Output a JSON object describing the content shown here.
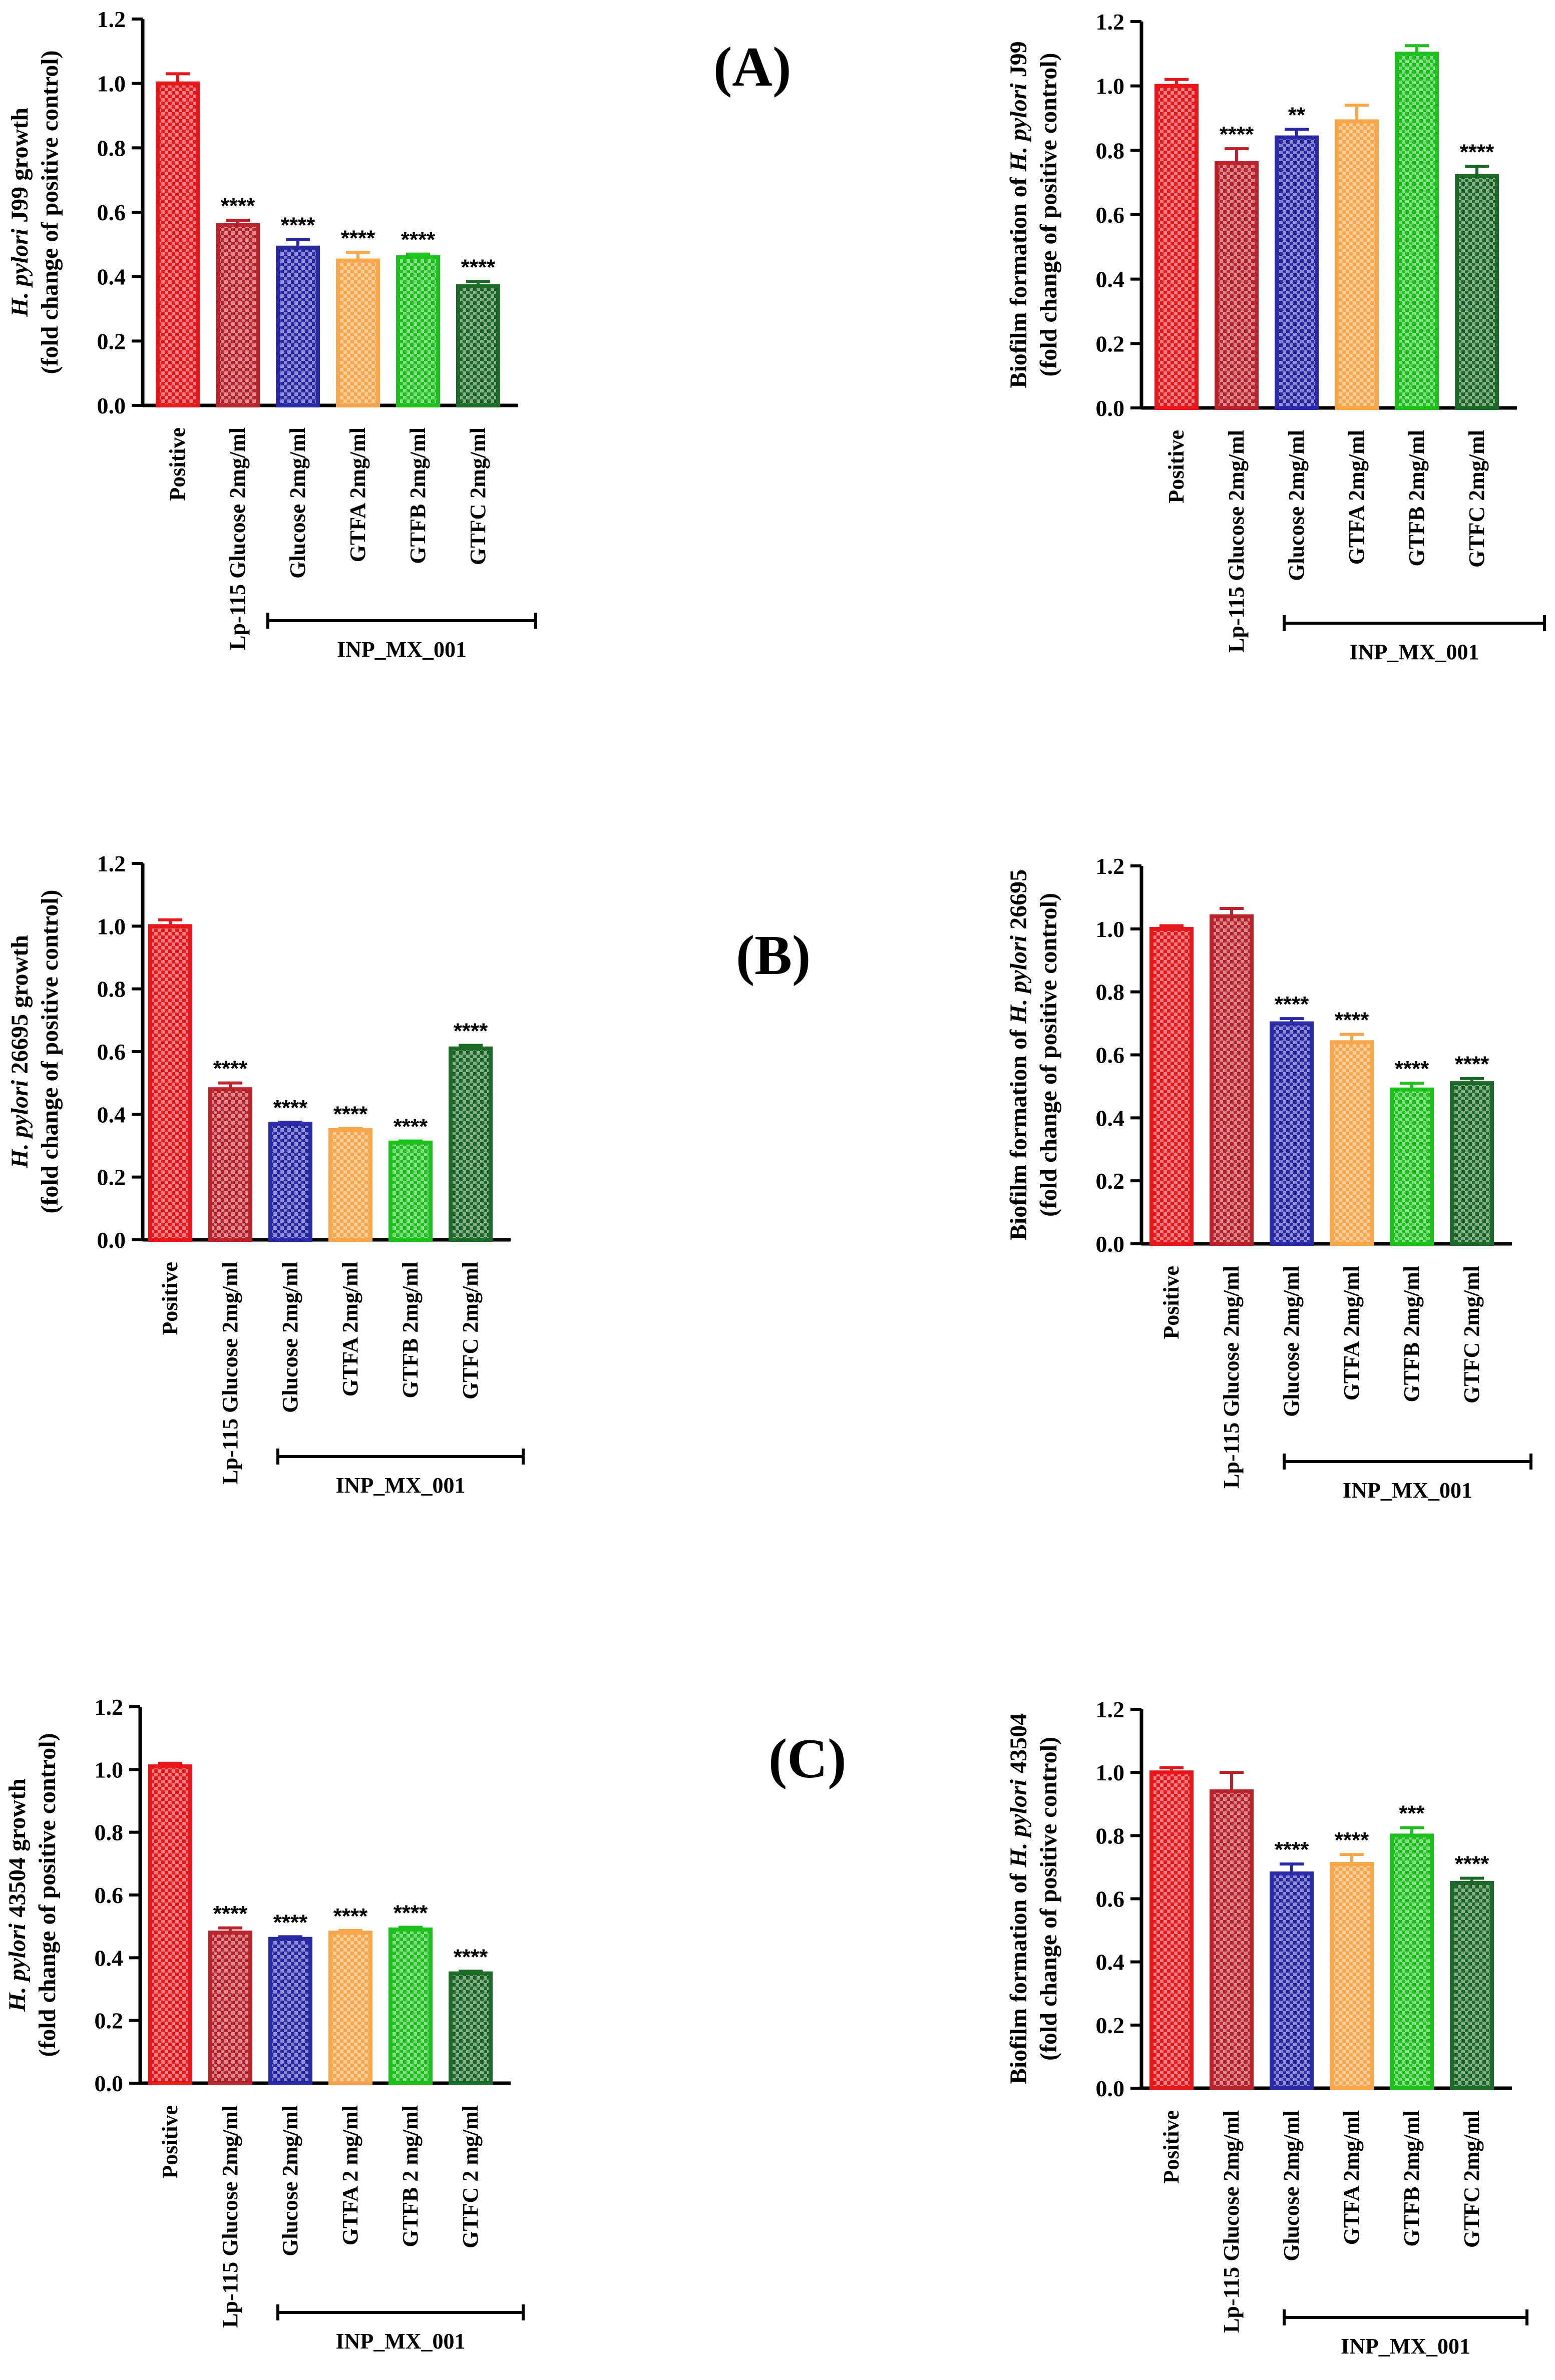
{
  "panel_labels": [
    "(A)",
    "(B)",
    "(C)"
  ],
  "colors": {
    "positive": "#e8171c",
    "lp115": "#b8232c",
    "glucose": "#2a2aa6",
    "gtfa": "#f8a64a",
    "gtfb": "#1ec01e",
    "gtfc": "#1d6a28",
    "axis": "#000000"
  },
  "chart_data": [
    {
      "id": "A-growth",
      "type": "bar",
      "ylabel_italic": "H. pylori",
      "ylabel_rest": " J99 growth",
      "ylabel_line2": "(fold change of positive control)",
      "ylim": [
        0,
        1.2
      ],
      "yticks": [
        "0.0",
        "0.2",
        "0.4",
        "0.6",
        "0.8",
        "1.0",
        "1.2"
      ],
      "categories": [
        "Positive",
        "Lp-115 Glucose 2mg/ml",
        "Glucose 2mg/ml",
        "GTFA 2mg/ml",
        "GTFB 2mg/ml",
        "GTFC 2mg/ml"
      ],
      "values": [
        1.0,
        0.56,
        0.49,
        0.45,
        0.46,
        0.37
      ],
      "errors": [
        0.03,
        0.015,
        0.025,
        0.025,
        0.01,
        0.015
      ],
      "significance": [
        "",
        "****",
        "****",
        "****",
        "****",
        "****"
      ],
      "group_label": "INP_MX_001"
    },
    {
      "id": "A-biofilm",
      "type": "bar",
      "ylabel_rest0": "Biofilm formation of ",
      "ylabel_italic": "H. pylori",
      "ylabel_rest": " J99",
      "ylabel_line2": "(fold change of positive control)",
      "ylim": [
        0,
        1.2
      ],
      "yticks": [
        "0.0",
        "0.2",
        "0.4",
        "0.6",
        "0.8",
        "1.0",
        "1.2"
      ],
      "categories": [
        "Positive",
        "Lp-115 Glucose 2mg/ml",
        "Glucose 2mg/ml",
        "GTFA 2mg/ml",
        "GTFB 2mg/ml",
        "GTFC 2mg/ml"
      ],
      "values": [
        1.0,
        0.76,
        0.84,
        0.89,
        1.1,
        0.72
      ],
      "errors": [
        0.02,
        0.045,
        0.025,
        0.05,
        0.025,
        0.03
      ],
      "significance": [
        "",
        "****",
        "**",
        "",
        "",
        "****"
      ],
      "group_label": "INP_MX_001"
    },
    {
      "id": "B-growth",
      "type": "bar",
      "ylabel_italic": "H. pylori",
      "ylabel_rest": " 26695 growth",
      "ylabel_line2": "(fold change of positive control)",
      "ylim": [
        0,
        1.2
      ],
      "yticks": [
        "0.0",
        "0.2",
        "0.4",
        "0.6",
        "0.8",
        "1.0",
        "1.2"
      ],
      "categories": [
        "Positive",
        "Lp-115 Glucose 2mg/ml",
        "Glucose 2mg/ml",
        "GTFA 2mg/ml",
        "GTFB 2mg/ml",
        "GTFC 2mg/ml"
      ],
      "values": [
        1.0,
        0.48,
        0.37,
        0.35,
        0.31,
        0.61
      ],
      "errors": [
        0.02,
        0.02,
        0.005,
        0.005,
        0.005,
        0.01
      ],
      "significance": [
        "",
        "****",
        "****",
        "****",
        "****",
        "****"
      ],
      "group_label": "INP_MX_001"
    },
    {
      "id": "B-biofilm",
      "type": "bar",
      "ylabel_rest0": "Biofilm formation of ",
      "ylabel_italic": "H. pylori",
      "ylabel_rest": " 26695",
      "ylabel_line2": "(fold change of positive control)",
      "ylim": [
        0,
        1.2
      ],
      "yticks": [
        "0.0",
        "0.2",
        "0.4",
        "0.6",
        "0.8",
        "1.0",
        "1.2"
      ],
      "categories": [
        "Positive",
        "Lp-115 Glucose 2mg/ml",
        "Glucose 2mg/ml",
        "GTFA 2mg/ml",
        "GTFB 2mg/ml",
        "GTFC 2mg/ml"
      ],
      "values": [
        1.0,
        1.04,
        0.7,
        0.64,
        0.49,
        0.51
      ],
      "errors": [
        0.01,
        0.025,
        0.015,
        0.025,
        0.02,
        0.015
      ],
      "significance": [
        "",
        "",
        "****",
        "****",
        "****",
        "****"
      ],
      "group_label": "INP_MX_001"
    },
    {
      "id": "C-growth",
      "type": "bar",
      "ylabel_italic": "H. pylori",
      "ylabel_rest": " 43504 growth",
      "ylabel_line2": "(fold change of positive control)",
      "ylim": [
        0,
        1.2
      ],
      "yticks": [
        "0.0",
        "0.2",
        "0.4",
        "0.6",
        "0.8",
        "1.0",
        "1.2"
      ],
      "categories": [
        "Positive",
        "Lp-115 Glucose 2mg/ml",
        "Glucose 2mg/ml",
        "GTFA 2 mg/ml",
        "GTFB 2 mg/ml",
        "GTFC 2 mg/ml"
      ],
      "values": [
        1.01,
        0.48,
        0.46,
        0.48,
        0.49,
        0.35
      ],
      "errors": [
        0.01,
        0.015,
        0.007,
        0.007,
        0.007,
        0.007
      ],
      "significance": [
        "",
        "****",
        "****",
        "****",
        "****",
        "****"
      ],
      "group_label": "INP_MX_001"
    },
    {
      "id": "C-biofilm",
      "type": "bar",
      "ylabel_rest0": "Biofilm formation of ",
      "ylabel_italic": "H. pylori",
      "ylabel_rest": " 43504",
      "ylabel_line2": "(fold change of positive control)",
      "ylim": [
        0,
        1.2
      ],
      "yticks": [
        "0.0",
        "0.2",
        "0.4",
        "0.6",
        "0.8",
        "1.0",
        "1.2"
      ],
      "categories": [
        "Positive",
        "Lp-115 Glucose 2mg/ml",
        "Glucose 2mg/ml",
        "GTFA 2mg/ml",
        "GTFB 2mg/ml",
        "GTFC 2mg/ml"
      ],
      "values": [
        1.0,
        0.94,
        0.68,
        0.71,
        0.8,
        0.65
      ],
      "errors": [
        0.015,
        0.06,
        0.03,
        0.03,
        0.025,
        0.015
      ],
      "significance": [
        "",
        "",
        "****",
        "****",
        "***",
        "****"
      ],
      "group_label": "INP_MX_001"
    }
  ]
}
